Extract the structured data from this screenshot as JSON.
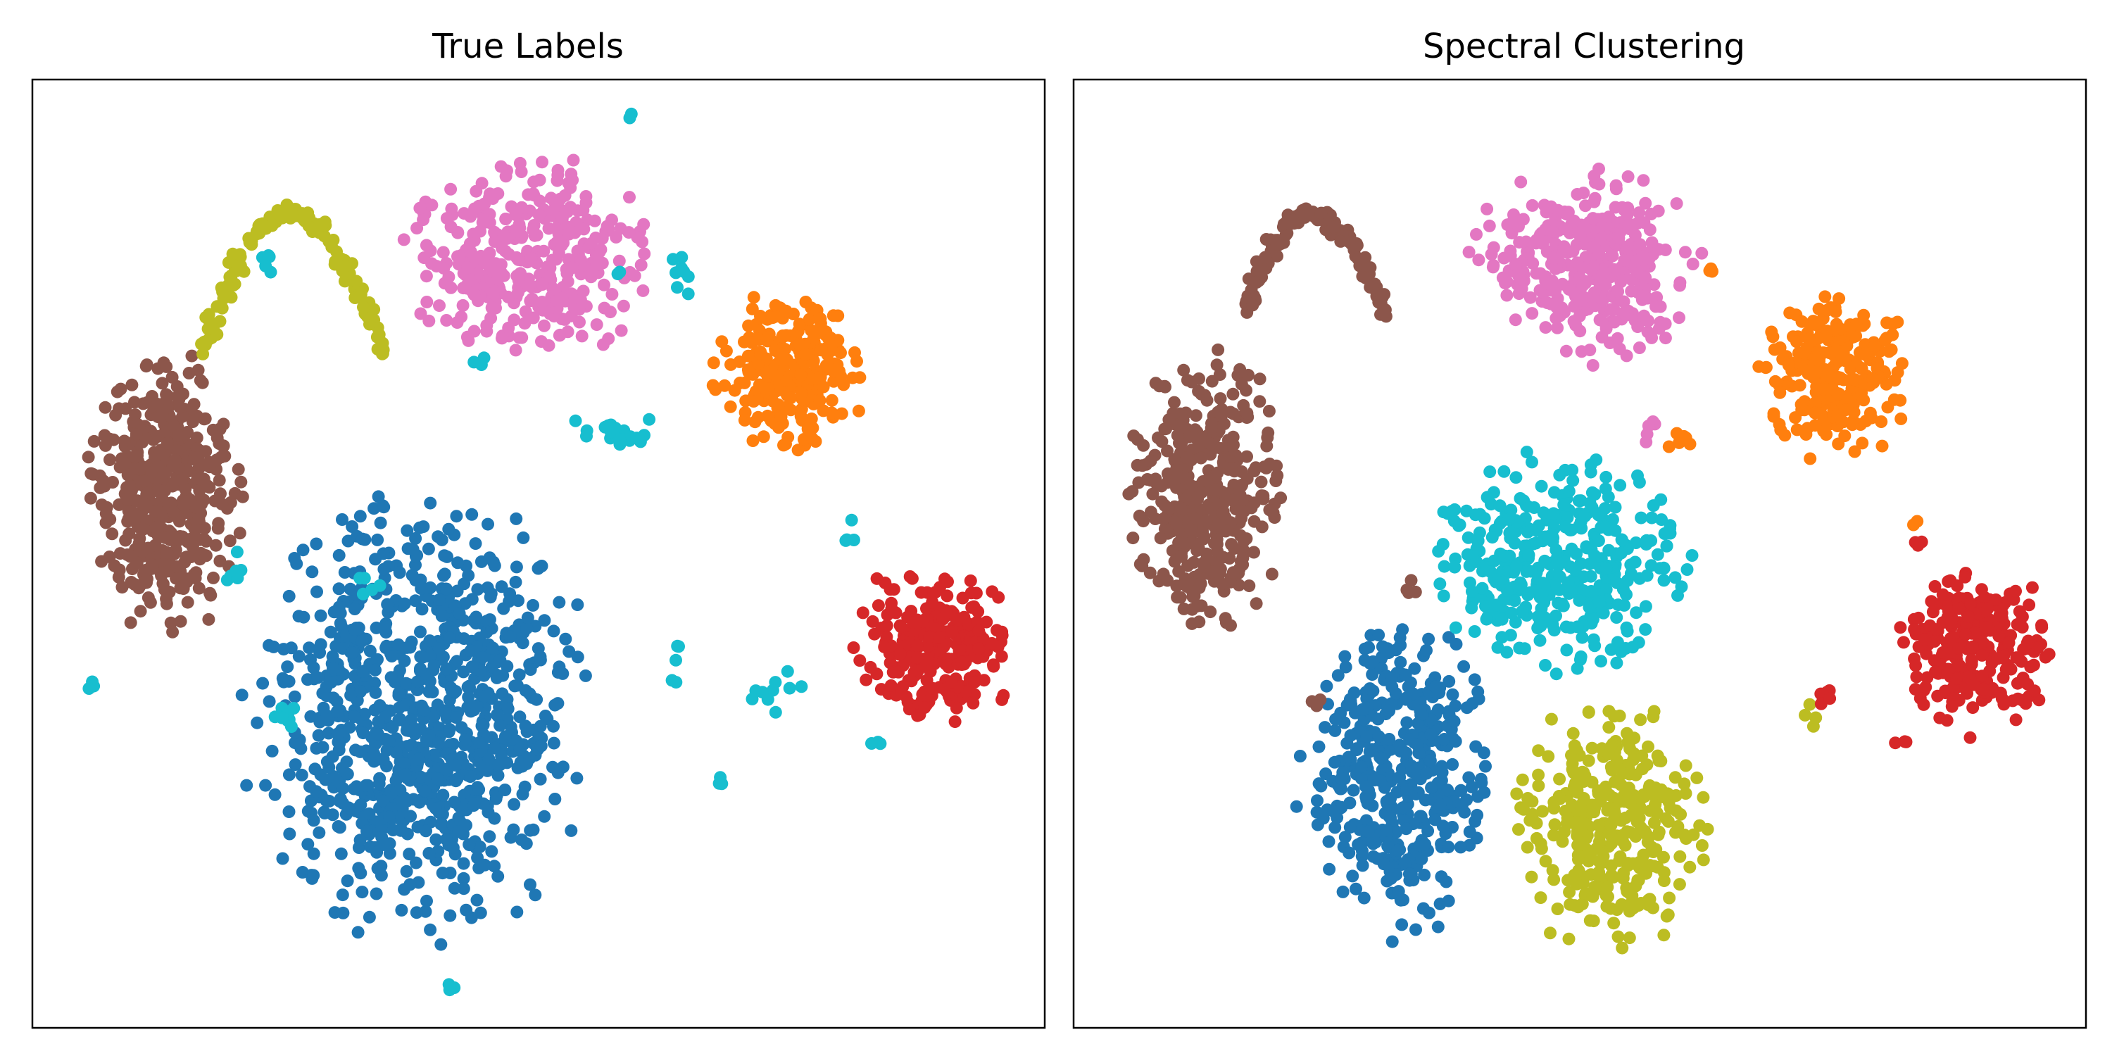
{
  "figure": {
    "titles": [
      "True Labels",
      "Spectral Clustering"
    ]
  },
  "chart_data": [
    {
      "type": "scatter",
      "title": "True Labels",
      "xlabel": "",
      "ylabel": "",
      "ticks": "none",
      "grid": false,
      "legend": "none",
      "xlim": [
        0,
        100
      ],
      "ylim": [
        0,
        100
      ],
      "series": [
        {
          "color": "#1f77b4",
          "clusters": [
            {
              "cx": 38,
              "cy": 33,
              "rx": 18,
              "ry": 25,
              "n": 900,
              "shape": "blob"
            }
          ]
        },
        {
          "color": "#8c564b",
          "clusters": [
            {
              "cx": 13,
              "cy": 56,
              "rx": 8,
              "ry": 16,
              "n": 420,
              "shape": "blob"
            }
          ]
        },
        {
          "color": "#bcbd22",
          "clusters": [
            {
              "shape": "arc",
              "x0": 17,
              "x1": 35,
              "ytop": 86,
              "ybot": 71,
              "n": 170
            }
          ]
        },
        {
          "color": "#e377c2",
          "clusters": [
            {
              "cx": 49,
              "cy": 81,
              "rx": 13,
              "ry": 11,
              "n": 360,
              "shape": "blob"
            }
          ]
        },
        {
          "color": "#ff7f0e",
          "clusters": [
            {
              "cx": 75,
              "cy": 69,
              "rx": 8,
              "ry": 9,
              "n": 260,
              "shape": "blob"
            }
          ]
        },
        {
          "color": "#d62728",
          "clusters": [
            {
              "cx": 89,
              "cy": 40,
              "rx": 8,
              "ry": 9,
              "n": 260,
              "shape": "blob"
            }
          ]
        },
        {
          "color": "#17becf",
          "clusters": [
            {
              "cx": 58,
              "cy": 63,
              "rx": 3,
              "ry": 1.5,
              "n": 18
            },
            {
              "cx": 64,
              "cy": 79,
              "rx": 1,
              "ry": 2,
              "n": 8
            },
            {
              "cx": 73,
              "cy": 36,
              "rx": 2,
              "ry": 2,
              "n": 10
            },
            {
              "cx": 25,
              "cy": 33,
              "rx": 1.5,
              "ry": 1,
              "n": 8
            },
            {
              "cx": 20,
              "cy": 48,
              "rx": 1,
              "ry": 1.5,
              "n": 6
            },
            {
              "cx": 81,
              "cy": 52,
              "rx": 0.5,
              "ry": 1,
              "n": 4
            },
            {
              "cx": 83,
              "cy": 30,
              "rx": 0.7,
              "ry": 0.5,
              "n": 3
            },
            {
              "cx": 23,
              "cy": 81,
              "rx": 0.7,
              "ry": 1.2,
              "n": 5
            },
            {
              "cx": 44,
              "cy": 70,
              "rx": 0.5,
              "ry": 0.5,
              "n": 3
            },
            {
              "cx": 63,
              "cy": 39,
              "rx": 1,
              "ry": 2,
              "n": 5
            },
            {
              "cx": 33,
              "cy": 47,
              "rx": 1,
              "ry": 1,
              "n": 5
            },
            {
              "cx": 68,
              "cy": 26,
              "rx": 0.5,
              "ry": 1,
              "n": 3
            },
            {
              "cx": 41,
              "cy": 4,
              "rx": 0.5,
              "ry": 0.8,
              "n": 3
            },
            {
              "cx": 6,
              "cy": 36,
              "rx": 0.6,
              "ry": 0.6,
              "n": 3
            },
            {
              "cx": 59,
              "cy": 96,
              "rx": 0.3,
              "ry": 0.3,
              "n": 2
            },
            {
              "cx": 58,
              "cy": 80,
              "rx": 0.5,
              "ry": 0.5,
              "n": 2
            }
          ]
        }
      ]
    },
    {
      "type": "scatter",
      "title": "Spectral Clustering",
      "xlabel": "",
      "ylabel": "",
      "ticks": "none",
      "grid": false,
      "legend": "none",
      "xlim": [
        0,
        100
      ],
      "ylim": [
        0,
        100
      ],
      "series": [
        {
          "color": "#1f77b4",
          "clusters": [
            {
              "cx": 32,
              "cy": 26,
              "rx": 10,
              "ry": 18,
              "n": 420,
              "shape": "blob"
            }
          ]
        },
        {
          "color": "#bcbd22",
          "clusters": [
            {
              "cx": 53,
              "cy": 21,
              "rx": 10,
              "ry": 14,
              "n": 340,
              "shape": "blob"
            },
            {
              "cx": 73,
              "cy": 33,
              "rx": 0.8,
              "ry": 0.8,
              "n": 4
            }
          ]
        },
        {
          "color": "#17becf",
          "clusters": [
            {
              "cx": 48,
              "cy": 49,
              "rx": 14,
              "ry": 12,
              "n": 380,
              "shape": "blob"
            }
          ]
        },
        {
          "color": "#8c564b",
          "clusters": [
            {
              "cx": 13,
              "cy": 56,
              "rx": 8,
              "ry": 16,
              "n": 420,
              "shape": "blob"
            },
            {
              "shape": "arc",
              "x0": 17,
              "x1": 31,
              "ytop": 86,
              "ybot": 75,
              "n": 140
            },
            {
              "cx": 33,
              "cy": 47,
              "rx": 1,
              "ry": 1,
              "n": 4
            },
            {
              "cx": 24,
              "cy": 34,
              "rx": 1,
              "ry": 0.5,
              "n": 3
            }
          ]
        },
        {
          "color": "#e377c2",
          "clusters": [
            {
              "cx": 51,
              "cy": 80,
              "rx": 12,
              "ry": 11,
              "n": 360,
              "shape": "blob"
            },
            {
              "cx": 57,
              "cy": 63,
              "rx": 1,
              "ry": 1,
              "n": 5
            }
          ]
        },
        {
          "color": "#ff7f0e",
          "clusters": [
            {
              "cx": 75,
              "cy": 69,
              "rx": 8,
              "ry": 9,
              "n": 260,
              "shape": "blob"
            },
            {
              "cx": 60,
              "cy": 62,
              "rx": 1.2,
              "ry": 0.8,
              "n": 6
            },
            {
              "cx": 63,
              "cy": 80,
              "rx": 0.5,
              "ry": 0.5,
              "n": 3
            },
            {
              "cx": 83,
              "cy": 53,
              "rx": 0.4,
              "ry": 0.4,
              "n": 2
            }
          ]
        },
        {
          "color": "#d62728",
          "clusters": [
            {
              "cx": 89,
              "cy": 40,
              "rx": 8,
              "ry": 9,
              "n": 260,
              "shape": "blob"
            },
            {
              "cx": 74.5,
              "cy": 35,
              "rx": 1,
              "ry": 1,
              "n": 5
            },
            {
              "cx": 83.5,
              "cy": 51,
              "rx": 0.5,
              "ry": 0.6,
              "n": 3
            },
            {
              "cx": 82,
              "cy": 30,
              "rx": 0.6,
              "ry": 0.3,
              "n": 3
            }
          ]
        }
      ]
    }
  ]
}
